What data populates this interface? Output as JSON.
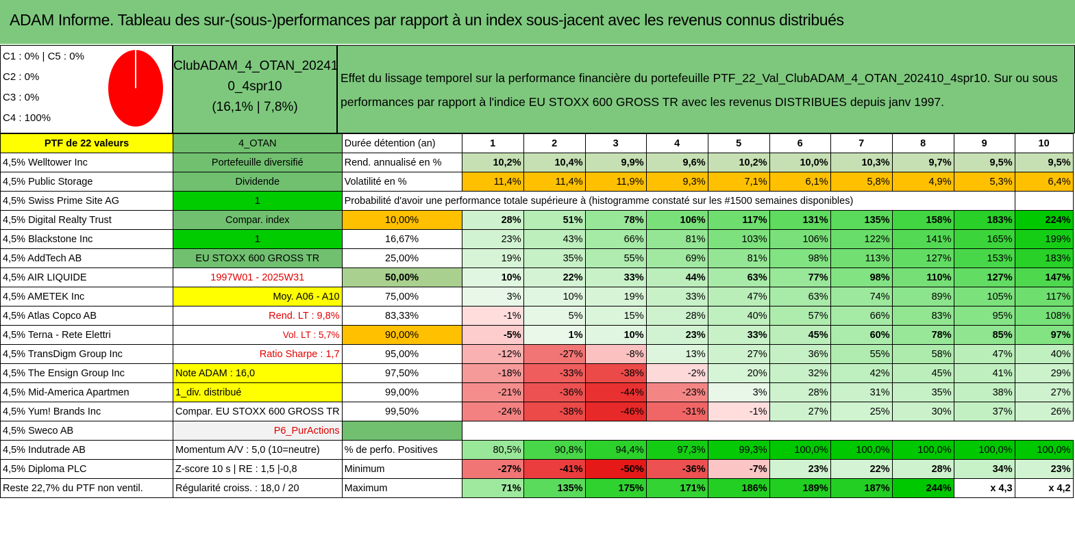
{
  "title": "ADAM Informe. Tableau des sur-(sous-)performances par rapport à un index sous-jacent avec les revenus connus distribués",
  "pie_legend": [
    "C1 : 0% | C5 : 0%",
    "C2 : 0%",
    "C3 : 0%",
    "C4 : 100%"
  ],
  "portfolio_name": [
    "ClubADAM_4_OTAN_20241",
    "0_4spr10",
    "(16,1% | 7,8%)"
  ],
  "effect_text": "Effet du lissage temporel sur la performance financière du portefeuille PTF_22_Val_ClubADAM_4_OTAN_202410_4spr10. Sur ou sous performances par rapport à l'indice EU STOXX 600 GROSS TR avec les revenus DISTRIBUES depuis janv 1997.",
  "holdings_header": "PTF de 22 valeurs",
  "holdings": [
    "4,5% Welltower Inc",
    "4,5% Public Storage",
    "4,5% Swiss Prime Site AG",
    "4,5% Digital Realty Trust",
    "4,5% Blackstone Inc",
    "4,5% AddTech AB",
    "4,5% AIR LIQUIDE",
    "4,5% AMETEK Inc",
    "4,5% Atlas Copco AB",
    "4,5% Terna - Rete Elettri",
    "4,5% TransDigm Group Inc",
    "4,5% The Ensign Group Inc",
    "4,5% Mid-America Apartmen",
    "4,5% Yum! Brands Inc",
    "4,5% Sweco AB",
    "4,5% Indutrade AB",
    "4,5% Diploma PLC",
    "Reste 22,7% du PTF non ventil."
  ],
  "info": [
    "4_OTAN",
    "Portefeuille diversifié",
    "Dividende",
    "1",
    "Compar. index",
    "1",
    "EU STOXX 600 GROSS TR",
    "1997W01 - 2025W31",
    "Moy. A06 - A10",
    "Rend. LT : 9,8%",
    "Vol. LT : 5,7%",
    "Ratio Sharpe : 1,7",
    "Note ADAM : 16,0",
    "1_div. distribué",
    "Compar. EU STOXX 600 GROSS TR",
    "P6_PurActions",
    "Momentum A/V : 5,0 (10=neutre)",
    "Z-score 10 s | RE : 1,5 |-0,8",
    "Régularité croiss. : 18,0 / 20"
  ],
  "header_label": "Durée détention (an)",
  "years": [
    "1",
    "2",
    "3",
    "4",
    "5",
    "6",
    "7",
    "8",
    "9",
    "10"
  ],
  "rend_label": "Rend. annualisé en %",
  "rend": [
    "10,2%",
    "10,4%",
    "9,9%",
    "9,6%",
    "10,2%",
    "10,0%",
    "10,3%",
    "9,7%",
    "9,5%",
    "9,5%"
  ],
  "vol_label": "Volatilité en %",
  "vol": [
    "11,4%",
    "11,4%",
    "11,9%",
    "9,3%",
    "7,1%",
    "6,1%",
    "5,8%",
    "4,9%",
    "5,3%",
    "6,4%"
  ],
  "prob_title": "Probabilité d'avoir une performance totale supérieure à (histogramme constaté sur les #1500 semaines disponibles)",
  "prob_rows": [
    {
      "p": "10,00%",
      "v": [
        "28%",
        "51%",
        "78%",
        "106%",
        "117%",
        "131%",
        "135%",
        "158%",
        "183%",
        "224%"
      ]
    },
    {
      "p": "16,67%",
      "v": [
        "23%",
        "43%",
        "66%",
        "81%",
        "103%",
        "106%",
        "122%",
        "141%",
        "165%",
        "199%"
      ]
    },
    {
      "p": "25,00%",
      "v": [
        "19%",
        "35%",
        "55%",
        "69%",
        "81%",
        "98%",
        "113%",
        "127%",
        "153%",
        "183%"
      ]
    },
    {
      "p": "50,00%",
      "v": [
        "10%",
        "22%",
        "33%",
        "44%",
        "63%",
        "77%",
        "98%",
        "110%",
        "127%",
        "147%"
      ]
    },
    {
      "p": "75,00%",
      "v": [
        "3%",
        "10%",
        "19%",
        "33%",
        "47%",
        "63%",
        "74%",
        "89%",
        "105%",
        "117%"
      ]
    },
    {
      "p": "83,33%",
      "v": [
        "-1%",
        "5%",
        "15%",
        "28%",
        "40%",
        "57%",
        "66%",
        "83%",
        "95%",
        "108%"
      ]
    },
    {
      "p": "90,00%",
      "v": [
        "-5%",
        "1%",
        "10%",
        "23%",
        "33%",
        "45%",
        "60%",
        "78%",
        "85%",
        "97%"
      ]
    },
    {
      "p": "95,00%",
      "v": [
        "-12%",
        "-27%",
        "-8%",
        "13%",
        "27%",
        "36%",
        "55%",
        "58%",
        "47%",
        "40%"
      ]
    },
    {
      "p": "97,50%",
      "v": [
        "-18%",
        "-33%",
        "-38%",
        "-2%",
        "20%",
        "32%",
        "42%",
        "45%",
        "41%",
        "29%"
      ]
    },
    {
      "p": "99,00%",
      "v": [
        "-21%",
        "-36%",
        "-44%",
        "-23%",
        "3%",
        "28%",
        "31%",
        "35%",
        "38%",
        "27%"
      ]
    },
    {
      "p": "99,50%",
      "v": [
        "-24%",
        "-38%",
        "-46%",
        "-31%",
        "-1%",
        "27%",
        "25%",
        "30%",
        "37%",
        "26%"
      ]
    }
  ],
  "pos_label": "% de perfo. Positives",
  "pos": [
    "80,5%",
    "90,8%",
    "94,4%",
    "97,3%",
    "99,3%",
    "100,0%",
    "100,0%",
    "100,0%",
    "100,0%",
    "100,0%"
  ],
  "min_label": "Minimum",
  "min": [
    "-27%",
    "-41%",
    "-50%",
    "-36%",
    "-7%",
    "23%",
    "22%",
    "28%",
    "34%",
    "23%"
  ],
  "max_label": "Maximum",
  "max": [
    "71%",
    "135%",
    "175%",
    "171%",
    "186%",
    "189%",
    "187%",
    "244%",
    "x 4,3",
    "x 4,2"
  ]
}
